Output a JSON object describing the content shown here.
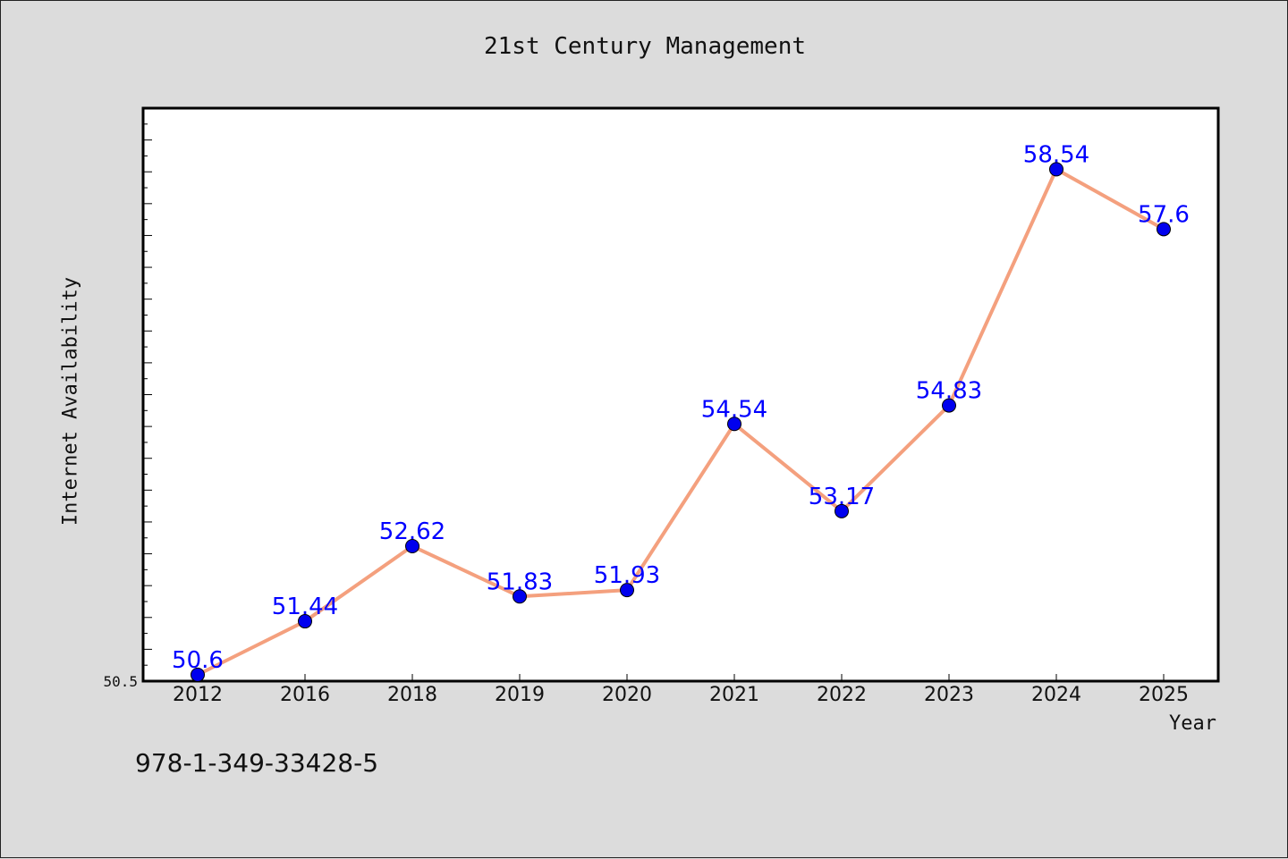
{
  "title": "21st Century Management",
  "isbn": "978-1-349-33428-5",
  "chart_data": {
    "type": "line",
    "title": "21st Century Management",
    "xlabel": "Year",
    "ylabel": "Internet Availability",
    "categories": [
      "2012",
      "2016",
      "2018",
      "2019",
      "2020",
      "2021",
      "2022",
      "2023",
      "2024",
      "2025"
    ],
    "series": [
      {
        "values": [
          50.6,
          51.44,
          52.62,
          51.83,
          51.93,
          54.54,
          53.17,
          54.83,
          58.54,
          57.6
        ]
      }
    ],
    "data_labels": [
      "50.6",
      "51.44",
      "52.62",
      "51.83",
      "51.93",
      "54.54",
      "53.17",
      "54.83",
      "58.54",
      "57.6"
    ],
    "ylim": [
      50.5,
      59.5
    ],
    "y_min_label": "50.5",
    "y_tick_labels_shown": false,
    "grid": false,
    "legend": "none",
    "colors": {
      "line": "#f4a07e",
      "marker": "#0000ee",
      "label": "#0000ff",
      "plot_bg": "#ffffff",
      "page_bg": "#dcdcdc"
    }
  }
}
